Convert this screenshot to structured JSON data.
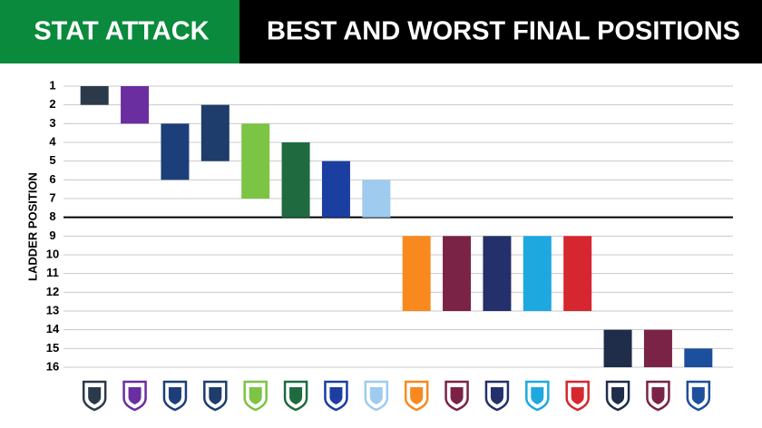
{
  "chart_data": {
    "type": "range-bar",
    "header": "STAT ATTACK",
    "title": "BEST AND WORST FINAL POSITIONS",
    "y_label": "LADDER POSITION",
    "categories": [
      null,
      null,
      null,
      null,
      null,
      null,
      null,
      null,
      null,
      null,
      null,
      null,
      null,
      null,
      null,
      null
    ],
    "best": [
      1,
      1,
      3,
      2,
      3,
      4,
      5,
      6,
      9,
      9,
      9,
      9,
      9,
      14,
      14,
      15
    ],
    "worst": [
      2,
      3,
      6,
      5,
      7,
      8,
      8,
      8,
      13,
      13,
      13,
      13,
      13,
      16,
      16,
      16
    ],
    "colors": [
      "#2b3a4a",
      "#6a2ea0",
      "#1c3f7a",
      "#1e3d6b",
      "#7cc443",
      "#1f6b3f",
      "#1a3fa0",
      "#9ecbee",
      "#f7891f",
      "#7a2346",
      "#23306b",
      "#1ea8e0",
      "#d6262f",
      "#1f2d4a",
      "#7a2346",
      "#1c4f9c"
    ],
    "ylim": [
      1,
      16
    ],
    "y_inverted": true,
    "yticks": [
      1,
      2,
      3,
      4,
      5,
      6,
      7,
      8,
      9,
      10,
      11,
      12,
      13,
      14,
      15,
      16
    ],
    "grid": true,
    "cutoff": 8
  }
}
